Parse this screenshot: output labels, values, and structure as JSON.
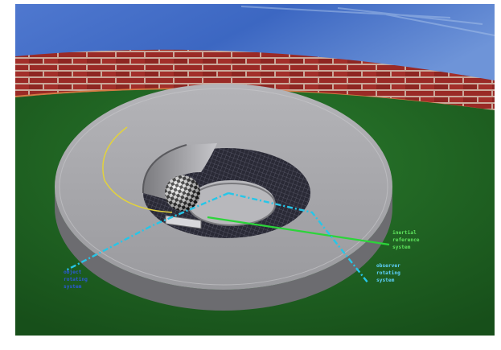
{
  "scene": {
    "colors": {
      "sky": "#3d6cc4",
      "sky_light": "#8fb1e2",
      "brick": "#9a2a26",
      "mortar": "#caa89a",
      "grass": "#1f6a22",
      "disk": "#a4a4a8",
      "disk_rim": "#6c6c70",
      "grid_dark": "#2a2a36",
      "cyan_line": "#26c6e8",
      "green_line": "#2cd43a",
      "yellow_path": "#e2d23c",
      "label_green": "#5ee25c",
      "label_cyan": "#5fd2ff",
      "label_blue": "#2c58d8"
    },
    "labels": {
      "inertial": [
        "inertial",
        "reference",
        "system"
      ],
      "observer": [
        "observer",
        "rotating",
        "system"
      ],
      "object": [
        "object",
        "rotating",
        "system"
      ]
    }
  }
}
